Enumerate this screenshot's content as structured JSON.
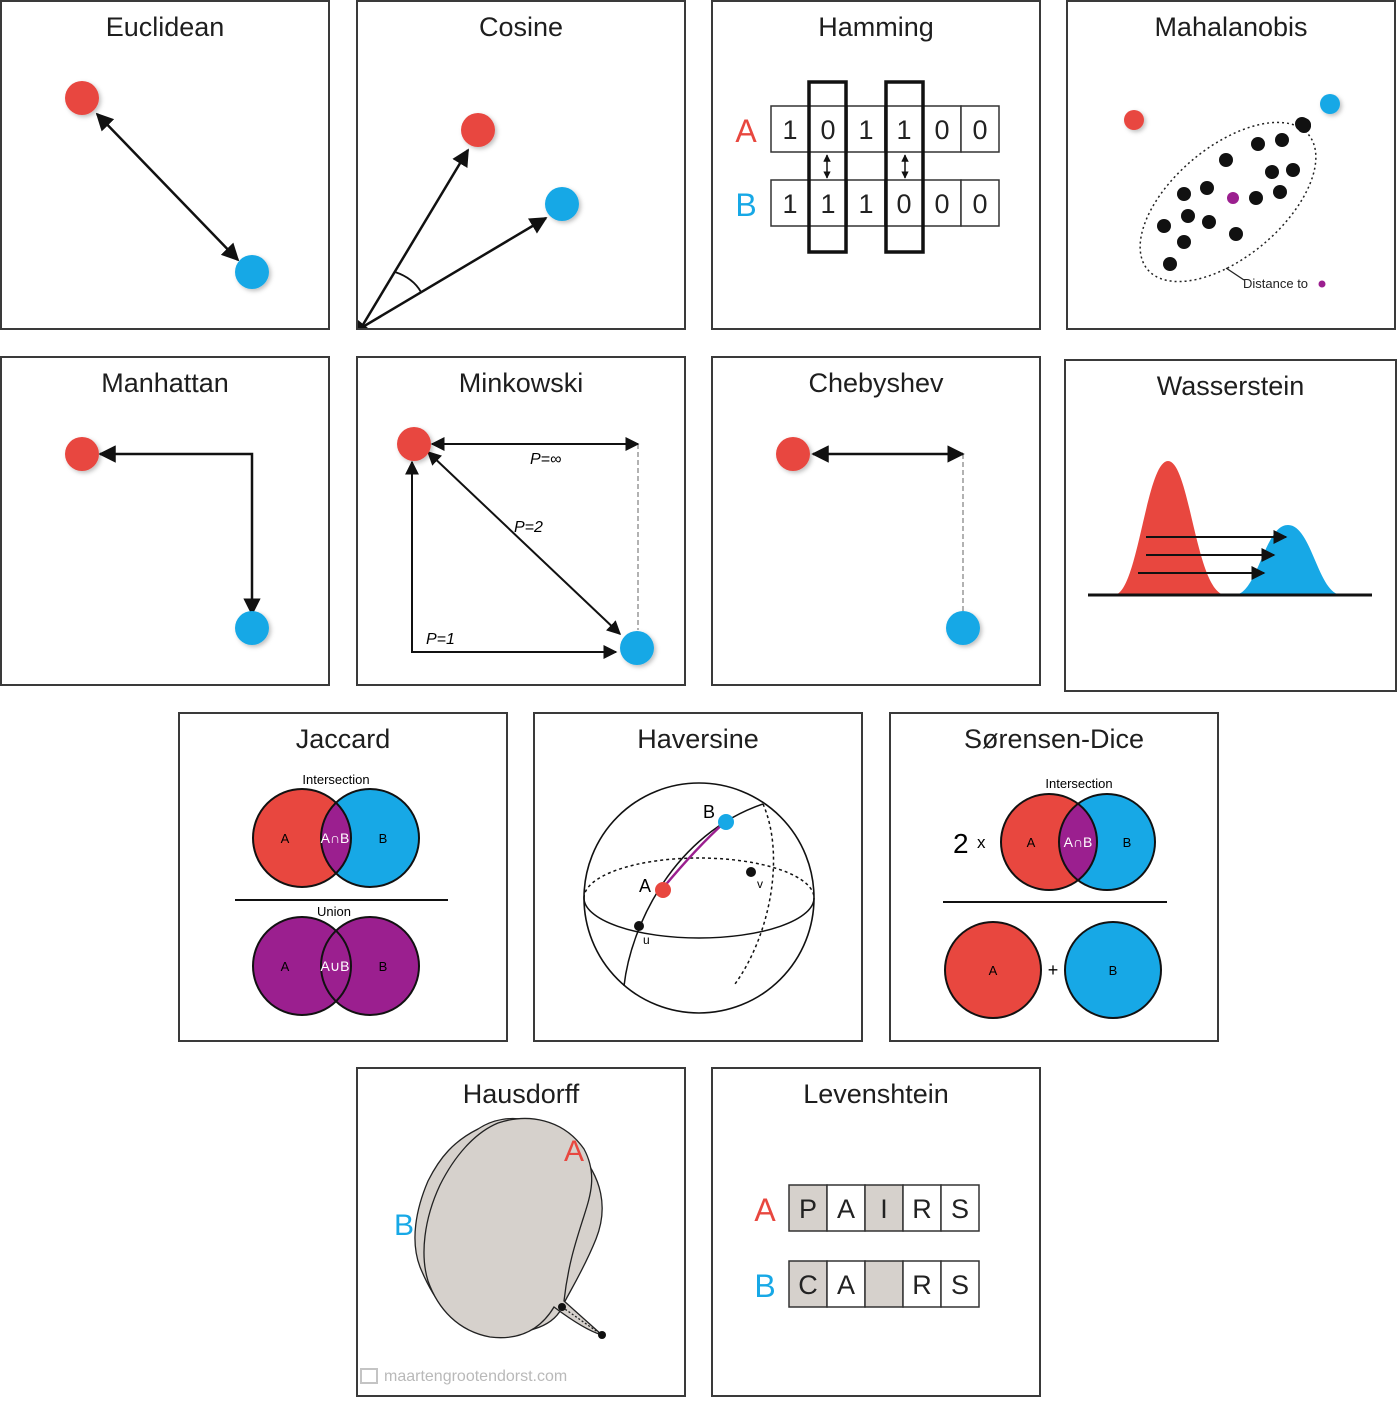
{
  "colors": {
    "red": "#e8473f",
    "blue": "#17a8e6",
    "purple": "#9b1f8f",
    "grey_fill": "#d6d1cc",
    "border": "#3a3a3a"
  },
  "panels": {
    "euclidean": {
      "title": "Euclidean"
    },
    "cosine": {
      "title": "Cosine"
    },
    "hamming": {
      "title": "Hamming",
      "label_a": "A",
      "label_b": "B",
      "row_a": [
        "1",
        "0",
        "1",
        "1",
        "0",
        "0"
      ],
      "row_b": [
        "1",
        "1",
        "1",
        "0",
        "0",
        "0"
      ]
    },
    "mahalanobis": {
      "title": "Mahalanobis",
      "caption": "Distance to"
    },
    "manhattan": {
      "title": "Manhattan"
    },
    "minkowski": {
      "title": "Minkowski",
      "p_inf": "P=∞",
      "p_2": "P=2",
      "p_1": "P=1"
    },
    "chebyshev": {
      "title": "Chebyshev"
    },
    "wasserstein": {
      "title": "Wasserstein"
    },
    "jaccard": {
      "title": "Jaccard",
      "top_caption": "Intersection",
      "bottom_caption": "Union",
      "a": "A",
      "b": "B",
      "intersection": "A∩B",
      "union": "A∪B"
    },
    "haversine": {
      "title": "Haversine",
      "a": "A",
      "b": "B",
      "u": "u",
      "v": "v"
    },
    "sorensen_dice": {
      "title": "Sørensen-Dice",
      "caption": "Intersection",
      "multiplier": "2",
      "times": "x",
      "a": "A",
      "b": "B",
      "intersection": "A∩B",
      "plus": "+"
    },
    "hausdorff": {
      "title": "Hausdorff",
      "a": "A",
      "b": "B"
    },
    "levenshtein": {
      "title": "Levenshtein",
      "label_a": "A",
      "label_b": "B",
      "row_a": [
        "P",
        "A",
        "I",
        "R",
        "S"
      ],
      "row_b": [
        "C",
        "A",
        "",
        "R",
        "S"
      ]
    }
  },
  "watermark": "maartengrootendorst.com"
}
